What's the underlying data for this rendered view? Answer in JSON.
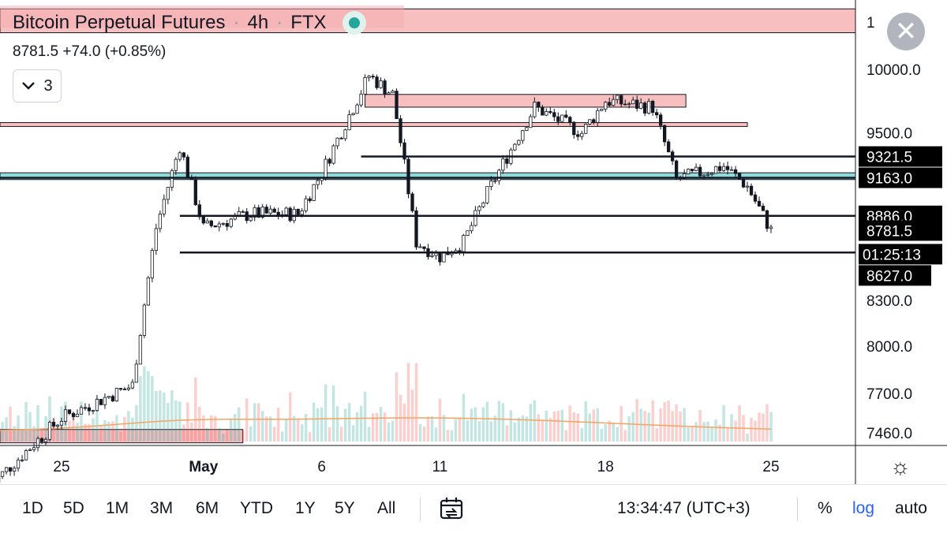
{
  "header": {
    "symbol": "Bitcoin Perpetual Futures",
    "interval": "4h",
    "exchange": "FTX",
    "last_price": "8781.5",
    "change": "+74.0 (+0.85%)",
    "indicator_count": "3"
  },
  "price_axis": {
    "ticks": [
      "10000.0",
      "9500.0",
      "8300.0",
      "8000.0",
      "7700.0",
      "7460.0"
    ],
    "top_partial_label": "1",
    "line_labels": [
      "9321.5",
      "9163.0",
      "8886.0",
      "8781.5"
    ],
    "countdown": "01:25:13",
    "low_label": "8627.0"
  },
  "time_axis": {
    "labels": [
      "25",
      "May",
      "6",
      "11",
      "18",
      "25"
    ]
  },
  "bottom_bar": {
    "ranges": [
      "1D",
      "5D",
      "1M",
      "3M",
      "6M",
      "YTD",
      "1Y",
      "5Y",
      "All"
    ],
    "clock": "13:34:47 (UTC+3)",
    "percent_label": "%",
    "log_label": "log",
    "auto_label": "auto"
  },
  "colors": {
    "accent": "#2962ff",
    "up_bar": "#26a69a",
    "down_bar": "#ef5350",
    "zone_fill": "#f4a9ab",
    "cyan_zone": "#7fd3d3",
    "volume_ma": "#f4a460"
  },
  "chart_data": {
    "type": "candlestick",
    "interval": "4h",
    "y_scale": "log",
    "y_range": [
      7390,
      10300
    ],
    "x_range_days": [
      "2020-04-22",
      "2020-05-28"
    ],
    "series_close_approx": [
      {
        "date": "2020-04-22",
        "value": 7150
      },
      {
        "date": "2020-04-25",
        "value": 7550
      },
      {
        "date": "2020-04-28",
        "value": 7750
      },
      {
        "date": "2020-04-29",
        "value": 8800
      },
      {
        "date": "2020-04-30",
        "value": 9400
      },
      {
        "date": "2020-05-01",
        "value": 8800
      },
      {
        "date": "2020-05-03",
        "value": 8900
      },
      {
        "date": "2020-05-05",
        "value": 8900
      },
      {
        "date": "2020-05-06",
        "value": 9200
      },
      {
        "date": "2020-05-08",
        "value": 9950
      },
      {
        "date": "2020-05-09",
        "value": 9800
      },
      {
        "date": "2020-05-10",
        "value": 8700
      },
      {
        "date": "2020-05-11",
        "value": 8600
      },
      {
        "date": "2020-05-12",
        "value": 8700
      },
      {
        "date": "2020-05-13",
        "value": 9050
      },
      {
        "date": "2020-05-15",
        "value": 9700
      },
      {
        "date": "2020-05-17",
        "value": 9500
      },
      {
        "date": "2020-05-18",
        "value": 9750
      },
      {
        "date": "2020-05-20",
        "value": 9700
      },
      {
        "date": "2020-05-21",
        "value": 9150
      },
      {
        "date": "2020-05-23",
        "value": 9250
      },
      {
        "date": "2020-05-24",
        "value": 9100
      },
      {
        "date": "2020-05-25",
        "value": 8781.5
      }
    ],
    "horizontal_lines": [
      {
        "value": 9321.5,
        "label": "9321.5"
      },
      {
        "value": 9163.0,
        "label": "9163.0"
      },
      {
        "value": 8886.0,
        "label": "8886.0"
      },
      {
        "value": 8627.0,
        "label": "8627.0"
      }
    ],
    "zones": [
      {
        "name": "resistance-10400",
        "low": 10300,
        "high": 10500
      },
      {
        "name": "resistance-9800",
        "low": 9700,
        "high": 9800
      },
      {
        "name": "resistance-9550",
        "low": 9550,
        "high": 9580
      },
      {
        "name": "support-cyan",
        "low": 9150,
        "high": 9200
      },
      {
        "name": "support-7460",
        "low": 7400,
        "high": 7480
      }
    ]
  }
}
